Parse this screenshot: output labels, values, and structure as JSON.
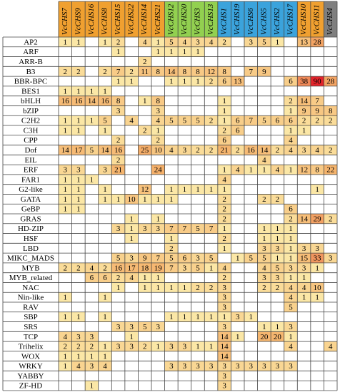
{
  "chart_data": {
    "type": "heatmap",
    "columns": [
      "VcCHS7",
      "VcCHS9",
      "VcCHS16",
      "VcCHS8",
      "VcCHS15",
      "VcCHS22",
      "VcCHS14",
      "VcCHS21",
      "VcCHS12",
      "VcCHS20",
      "VcCHS3",
      "VcCHS13",
      "VcCHS1",
      "VcCHS19",
      "VcCHS6",
      "VcCHS5",
      "VcCHS2",
      "VcCHS17",
      "VcCHS10",
      "VcCHS11",
      "VcCHS4"
    ],
    "column_colors": [
      "#f0a030",
      "#f0a030",
      "#f0a030",
      "#f0a030",
      "#f0a030",
      "#f0a030",
      "#f0a030",
      "#f0a030",
      "#92d050",
      "#92d050",
      "#92d050",
      "#92d050",
      "#3ba3dc",
      "#3ba3dc",
      "#3ba3dc",
      "#3ba3dc",
      "#3ba3dc",
      "#3ba3dc",
      "#f0a030",
      "#f0a030",
      "#7f7f7f"
    ],
    "scale_colors": [
      "#fbe7a6",
      "#f5b26b",
      "#e3242b"
    ],
    "rows": [
      {
        "name": "AP2",
        "values": [
          1,
          1,
          null,
          1,
          2,
          null,
          4,
          1,
          5,
          4,
          3,
          4,
          2,
          null,
          3,
          5,
          1,
          null,
          13,
          28,
          null
        ]
      },
      {
        "name": "ARF",
        "values": [
          null,
          null,
          null,
          null,
          1,
          null,
          null,
          1,
          1,
          1,
          1,
          null,
          null,
          null,
          null,
          null,
          null,
          null,
          null,
          null,
          null
        ]
      },
      {
        "name": "ARR-B",
        "values": [
          null,
          null,
          null,
          null,
          null,
          null,
          2,
          null,
          null,
          null,
          null,
          null,
          null,
          null,
          null,
          null,
          null,
          null,
          null,
          null,
          null
        ]
      },
      {
        "name": "B3",
        "values": [
          2,
          2,
          null,
          2,
          7,
          2,
          11,
          8,
          14,
          8,
          8,
          12,
          8,
          null,
          7,
          9,
          null,
          null,
          null,
          null,
          null
        ]
      },
      {
        "name": "BBR-BPC",
        "values": [
          null,
          null,
          null,
          null,
          1,
          1,
          null,
          null,
          1,
          1,
          1,
          2,
          6,
          13,
          null,
          null,
          null,
          6,
          38,
          90,
          28
        ]
      },
      {
        "name": "BES1",
        "values": [
          1,
          1,
          1,
          1,
          null,
          null,
          null,
          null,
          null,
          null,
          null,
          null,
          null,
          null,
          null,
          null,
          null,
          null,
          null,
          null,
          null
        ]
      },
      {
        "name": "bHLH",
        "values": [
          16,
          16,
          14,
          16,
          8,
          null,
          1,
          8,
          null,
          null,
          null,
          null,
          1,
          null,
          null,
          null,
          null,
          2,
          14,
          7,
          null
        ]
      },
      {
        "name": "bZIP",
        "values": [
          null,
          null,
          null,
          null,
          3,
          null,
          null,
          3,
          null,
          null,
          null,
          null,
          1,
          null,
          null,
          null,
          null,
          1,
          9,
          9,
          8
        ]
      },
      {
        "name": "C2H2",
        "values": [
          1,
          1,
          1,
          5,
          null,
          4,
          null,
          4,
          5,
          5,
          5,
          2,
          1,
          6,
          7,
          5,
          6,
          6,
          2,
          2,
          2
        ]
      },
      {
        "name": "C3H",
        "values": [
          1,
          1,
          null,
          1,
          null,
          null,
          2,
          1,
          null,
          null,
          null,
          null,
          2,
          6,
          null,
          null,
          null,
          1,
          1,
          null,
          null
        ]
      },
      {
        "name": "CPP",
        "values": [
          null,
          null,
          null,
          null,
          2,
          null,
          null,
          2,
          null,
          null,
          null,
          null,
          6,
          null,
          null,
          null,
          null,
          4,
          null,
          null,
          null
        ]
      },
      {
        "name": "Dof",
        "values": [
          14,
          17,
          5,
          14,
          16,
          null,
          25,
          10,
          4,
          3,
          2,
          2,
          21,
          2,
          16,
          14,
          2,
          4,
          3,
          4,
          2
        ]
      },
      {
        "name": "EIL",
        "values": [
          null,
          null,
          null,
          null,
          2,
          null,
          null,
          null,
          null,
          null,
          null,
          null,
          null,
          null,
          null,
          4,
          null,
          null,
          null,
          null,
          null
        ]
      },
      {
        "name": "ERF",
        "values": [
          3,
          3,
          null,
          3,
          21,
          null,
          null,
          24,
          null,
          null,
          null,
          null,
          1,
          4,
          1,
          1,
          4,
          1,
          12,
          8,
          22
        ]
      },
      {
        "name": "FAR1",
        "values": [
          1,
          1,
          1,
          null,
          null,
          null,
          null,
          null,
          null,
          null,
          null,
          null,
          4,
          null,
          null,
          null,
          null,
          null,
          null,
          null,
          null
        ]
      },
      {
        "name": "G2-like",
        "values": [
          1,
          1,
          null,
          1,
          null,
          null,
          12,
          null,
          1,
          1,
          1,
          1,
          1,
          null,
          null,
          null,
          null,
          null,
          null,
          1,
          null
        ]
      },
      {
        "name": "GATA",
        "values": [
          1,
          1,
          null,
          1,
          1,
          10,
          1,
          1,
          1,
          null,
          null,
          null,
          2,
          null,
          null,
          2,
          2,
          null,
          null,
          null,
          null
        ]
      },
      {
        "name": "GeBP",
        "values": [
          1,
          1,
          null,
          null,
          null,
          null,
          null,
          null,
          null,
          null,
          null,
          null,
          2,
          null,
          null,
          null,
          null,
          6,
          null,
          null,
          null
        ]
      },
      {
        "name": "GRAS",
        "values": [
          null,
          null,
          null,
          null,
          null,
          1,
          null,
          1,
          null,
          null,
          null,
          null,
          2,
          null,
          null,
          null,
          null,
          2,
          14,
          29,
          2
        ]
      },
      {
        "name": "HD-ZIP",
        "values": [
          null,
          null,
          null,
          null,
          3,
          1,
          3,
          3,
          7,
          7,
          5,
          7,
          1,
          null,
          null,
          1,
          1,
          1,
          null,
          null,
          null
        ]
      },
      {
        "name": "HSF",
        "values": [
          null,
          null,
          null,
          null,
          null,
          1,
          null,
          null,
          1,
          null,
          null,
          null,
          2,
          null,
          null,
          1,
          1,
          1,
          null,
          null,
          null
        ]
      },
      {
        "name": "LBD",
        "values": [
          null,
          null,
          null,
          null,
          null,
          null,
          null,
          null,
          2,
          null,
          null,
          null,
          1,
          null,
          null,
          3,
          3,
          1,
          3,
          3,
          null
        ]
      },
      {
        "name": "MIKC_MADS",
        "values": [
          null,
          null,
          null,
          null,
          5,
          3,
          9,
          7,
          5,
          6,
          3,
          5,
          null,
          1,
          5,
          5,
          1,
          1,
          15,
          33,
          3
        ]
      },
      {
        "name": "MYB",
        "values": [
          2,
          2,
          4,
          2,
          16,
          17,
          18,
          19,
          7,
          3,
          5,
          1,
          4,
          null,
          null,
          4,
          5,
          3,
          3,
          1,
          null
        ]
      },
      {
        "name": "MYB_related",
        "values": [
          null,
          null,
          6,
          6,
          2,
          4,
          1,
          1,
          null,
          null,
          null,
          null,
          2,
          null,
          null,
          3,
          3,
          1,
          1,
          null,
          null
        ]
      },
      {
        "name": "NAC",
        "values": [
          null,
          null,
          null,
          null,
          1,
          null,
          1,
          1,
          1,
          1,
          2,
          2,
          3,
          null,
          null,
          2,
          2,
          4,
          4,
          10,
          null
        ]
      },
      {
        "name": "Nin-like",
        "values": [
          1,
          null,
          null,
          1,
          null,
          null,
          null,
          null,
          null,
          null,
          null,
          null,
          3,
          null,
          null,
          null,
          null,
          4,
          1,
          1,
          null
        ]
      },
      {
        "name": "RAV",
        "values": [
          null,
          null,
          null,
          null,
          null,
          null,
          null,
          null,
          null,
          null,
          null,
          null,
          3,
          null,
          null,
          null,
          null,
          5,
          null,
          null,
          null
        ]
      },
      {
        "name": "SBP",
        "values": [
          1,
          1,
          null,
          1,
          null,
          null,
          null,
          null,
          1,
          1,
          1,
          1,
          1,
          3,
          1,
          null,
          null,
          null,
          null,
          null,
          null
        ]
      },
      {
        "name": "SRS",
        "values": [
          null,
          null,
          null,
          null,
          3,
          3,
          5,
          3,
          null,
          null,
          null,
          null,
          3,
          null,
          null,
          1,
          1,
          3,
          null,
          null,
          null
        ]
      },
      {
        "name": "TCP",
        "values": [
          4,
          3,
          3,
          null,
          null,
          1,
          null,
          null,
          null,
          null,
          null,
          null,
          14,
          1,
          null,
          20,
          20,
          1,
          null,
          null,
          null
        ]
      },
      {
        "name": "Trihelix",
        "values": [
          2,
          2,
          2,
          1,
          3,
          3,
          2,
          1,
          3,
          3,
          1,
          1,
          14,
          null,
          null,
          null,
          null,
          4,
          null,
          null,
          4
        ]
      },
      {
        "name": "WOX",
        "values": [
          1,
          1,
          1,
          1,
          null,
          null,
          null,
          null,
          null,
          null,
          null,
          null,
          14,
          null,
          null,
          null,
          null,
          null,
          null,
          null,
          null
        ]
      },
      {
        "name": "WRKY",
        "values": [
          1,
          4,
          3,
          4,
          null,
          null,
          null,
          null,
          3,
          3,
          3,
          3,
          3,
          3,
          3,
          3,
          3,
          3,
          null,
          null,
          null
        ]
      },
      {
        "name": "YABBY",
        "values": [
          null,
          null,
          null,
          null,
          null,
          null,
          null,
          null,
          null,
          null,
          null,
          null,
          3,
          null,
          null,
          null,
          null,
          null,
          null,
          null,
          null
        ]
      },
      {
        "name": "ZF-HD",
        "values": [
          null,
          null,
          1,
          null,
          null,
          null,
          null,
          null,
          null,
          null,
          null,
          null,
          3,
          null,
          null,
          null,
          null,
          null,
          null,
          null,
          null
        ]
      }
    ]
  }
}
